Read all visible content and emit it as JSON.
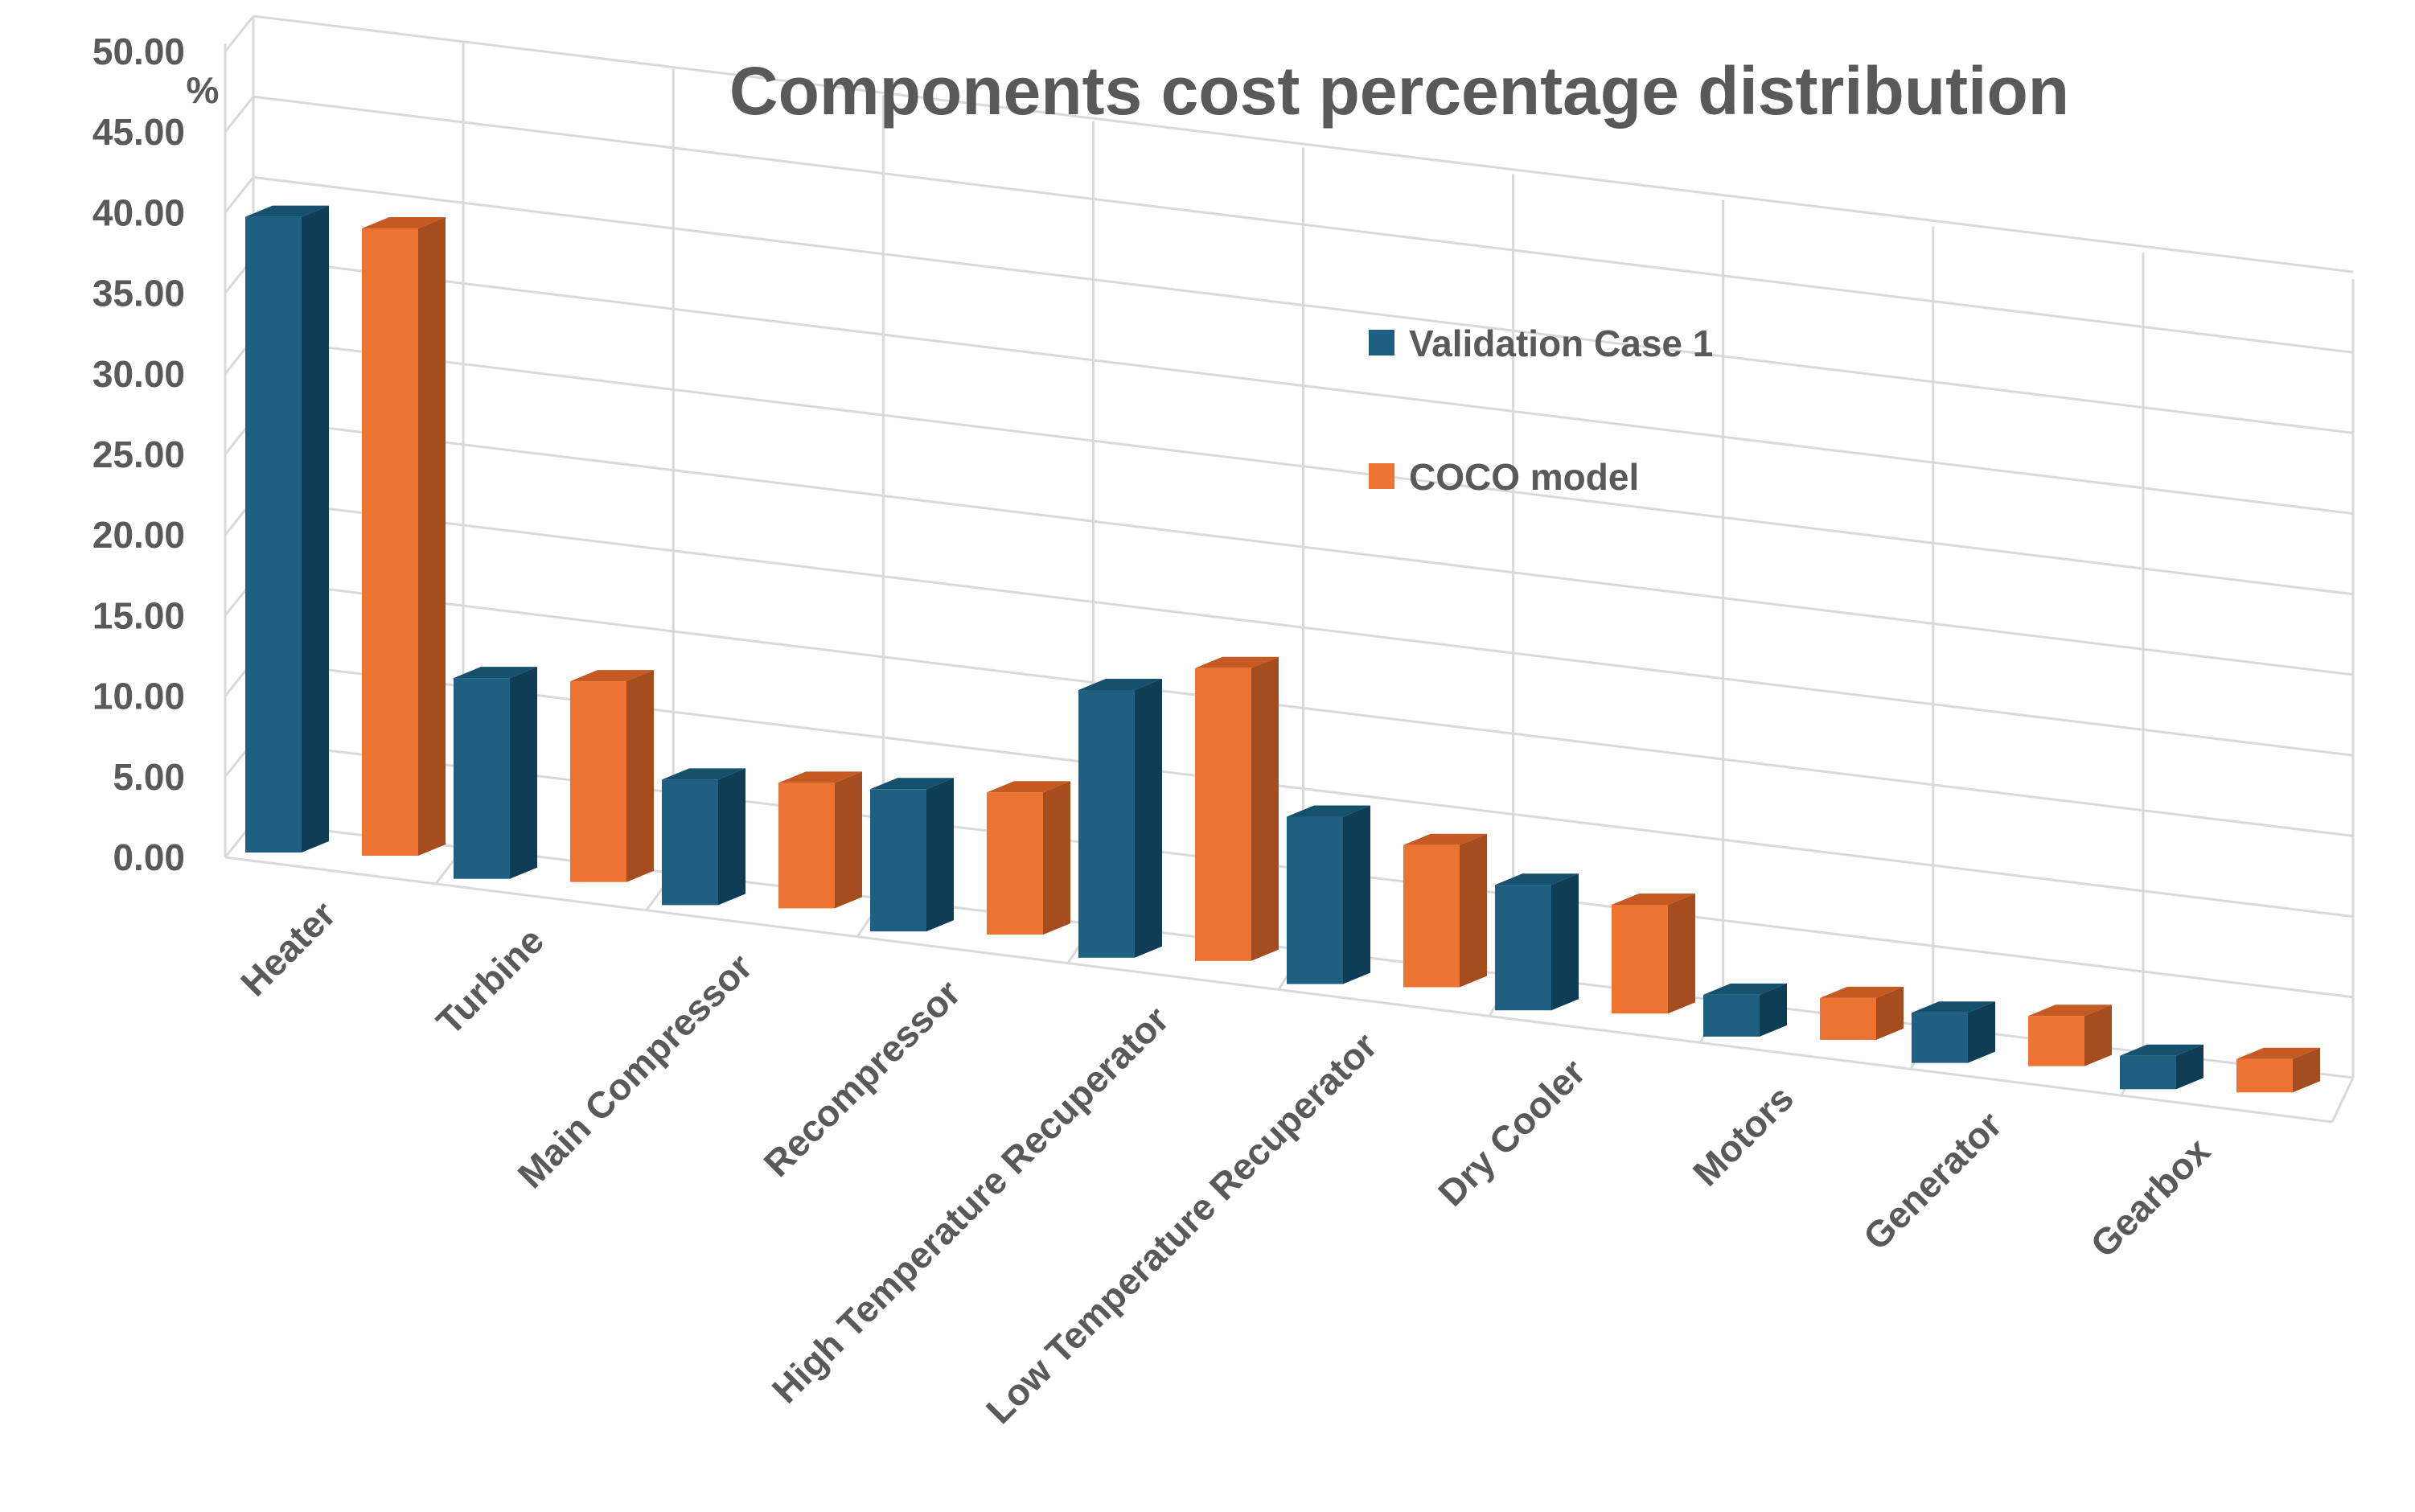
{
  "chart_data": {
    "type": "bar",
    "title": "Components cost  percentage distribution",
    "ylabel": "%",
    "xlabel": "",
    "ylim": [
      0,
      50
    ],
    "ytick_labels": [
      "0.00",
      "5.00",
      "10.00",
      "15.00",
      "20.00",
      "25.00",
      "30.00",
      "35.00",
      "40.00",
      "45.00",
      "50.00"
    ],
    "categories": [
      "Heater",
      "Turbine",
      "Main Compressor",
      "Recompressor",
      "High Temperature Recuperator",
      "Low Temperature Recuperator",
      "Dry Cooler",
      "Motors",
      "Generator",
      "Gearbox"
    ],
    "series": [
      {
        "name": "Validation Case 1",
        "color": "#1f6082",
        "side_color": "#0e3d55",
        "top_color": "#15506d",
        "values": [
          38.0,
          12.0,
          7.5,
          8.5,
          16.0,
          10.0,
          7.5,
          2.5,
          3.0,
          2.0
        ]
      },
      {
        "name": "COCO model",
        "color": "#ec7332",
        "side_color": "#a54d1e",
        "top_color": "#c55a22",
        "values": [
          37.5,
          12.0,
          7.5,
          8.5,
          17.5,
          8.5,
          6.5,
          2.5,
          3.0,
          2.0
        ]
      }
    ],
    "legend": "right-middle",
    "grid": true,
    "projection": "3d"
  }
}
